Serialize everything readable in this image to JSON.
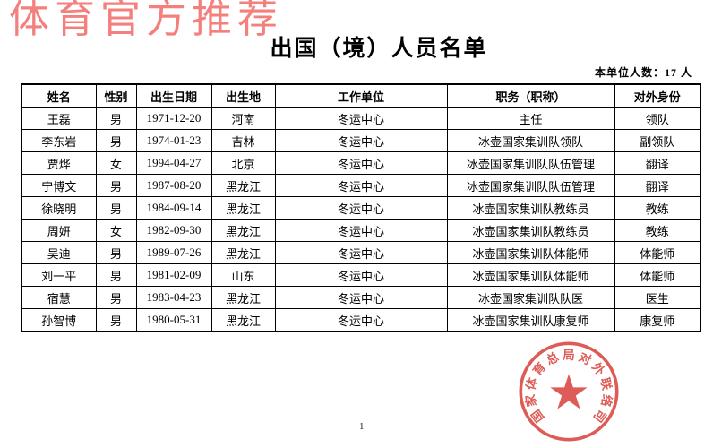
{
  "watermark": {
    "text": "体育官方推荐",
    "color": "#f4807e"
  },
  "document": {
    "title": "出国（境）人员名单",
    "unit_count_label": "本单位人数：17 人",
    "page_number": "1"
  },
  "table": {
    "columns": [
      "姓名",
      "性别",
      "出生日期",
      "出生地",
      "工作单位",
      "职务（职称）",
      "对外身份"
    ],
    "rows": [
      [
        "王磊",
        "男",
        "1971-12-20",
        "河南",
        "冬运中心",
        "主任",
        "领队"
      ],
      [
        "李东岩",
        "男",
        "1974-01-23",
        "吉林",
        "冬运中心",
        "冰壶国家集训队领队",
        "副领队"
      ],
      [
        "贾烨",
        "女",
        "1994-04-27",
        "北京",
        "冬运中心",
        "冰壶国家集训队队伍管理",
        "翻译"
      ],
      [
        "宁博文",
        "男",
        "1987-08-20",
        "黑龙江",
        "冬运中心",
        "冰壶国家集训队队伍管理",
        "翻译"
      ],
      [
        "徐晓明",
        "男",
        "1984-09-14",
        "黑龙江",
        "冬运中心",
        "冰壶国家集训队教练员",
        "教练"
      ],
      [
        "周妍",
        "女",
        "1982-09-30",
        "黑龙江",
        "冬运中心",
        "冰壶国家集训队教练员",
        "教练"
      ],
      [
        "吴迪",
        "男",
        "1989-07-26",
        "黑龙江",
        "冬运中心",
        "冰壶国家集训队体能师",
        "体能师"
      ],
      [
        "刘一平",
        "男",
        "1981-02-09",
        "山东",
        "冬运中心",
        "冰壶国家集训队体能师",
        "体能师"
      ],
      [
        "宿慧",
        "男",
        "1983-04-23",
        "黑龙江",
        "冬运中心",
        "冰壶国家集训队队医",
        "医生"
      ],
      [
        "孙智博",
        "男",
        "1980-05-31",
        "黑龙江",
        "冬运中心",
        "冰壶国家集训队康复师",
        "康复师"
      ]
    ]
  },
  "stamp": {
    "text": "国家体育总局对外联络司",
    "color": "#d9403a"
  }
}
